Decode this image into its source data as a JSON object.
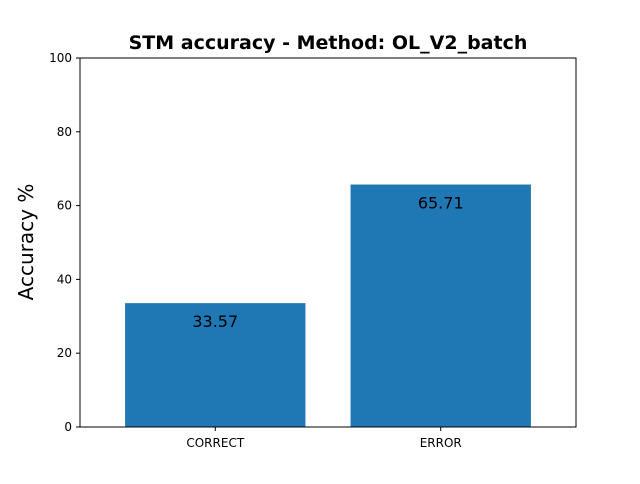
{
  "chart_data": {
    "type": "bar",
    "title": "STM accuracy - Method: OL_V2_batch",
    "xlabel": "",
    "ylabel": "Accuracy %",
    "categories": [
      "CORRECT",
      "ERROR"
    ],
    "values": [
      33.57,
      65.71
    ],
    "value_labels": [
      "33.57",
      "65.71"
    ],
    "ylim": [
      0,
      100
    ],
    "yticks": [
      0,
      20,
      40,
      60,
      80,
      100
    ],
    "grid": false,
    "legend": "none",
    "bar_color": "#1f77b4"
  }
}
